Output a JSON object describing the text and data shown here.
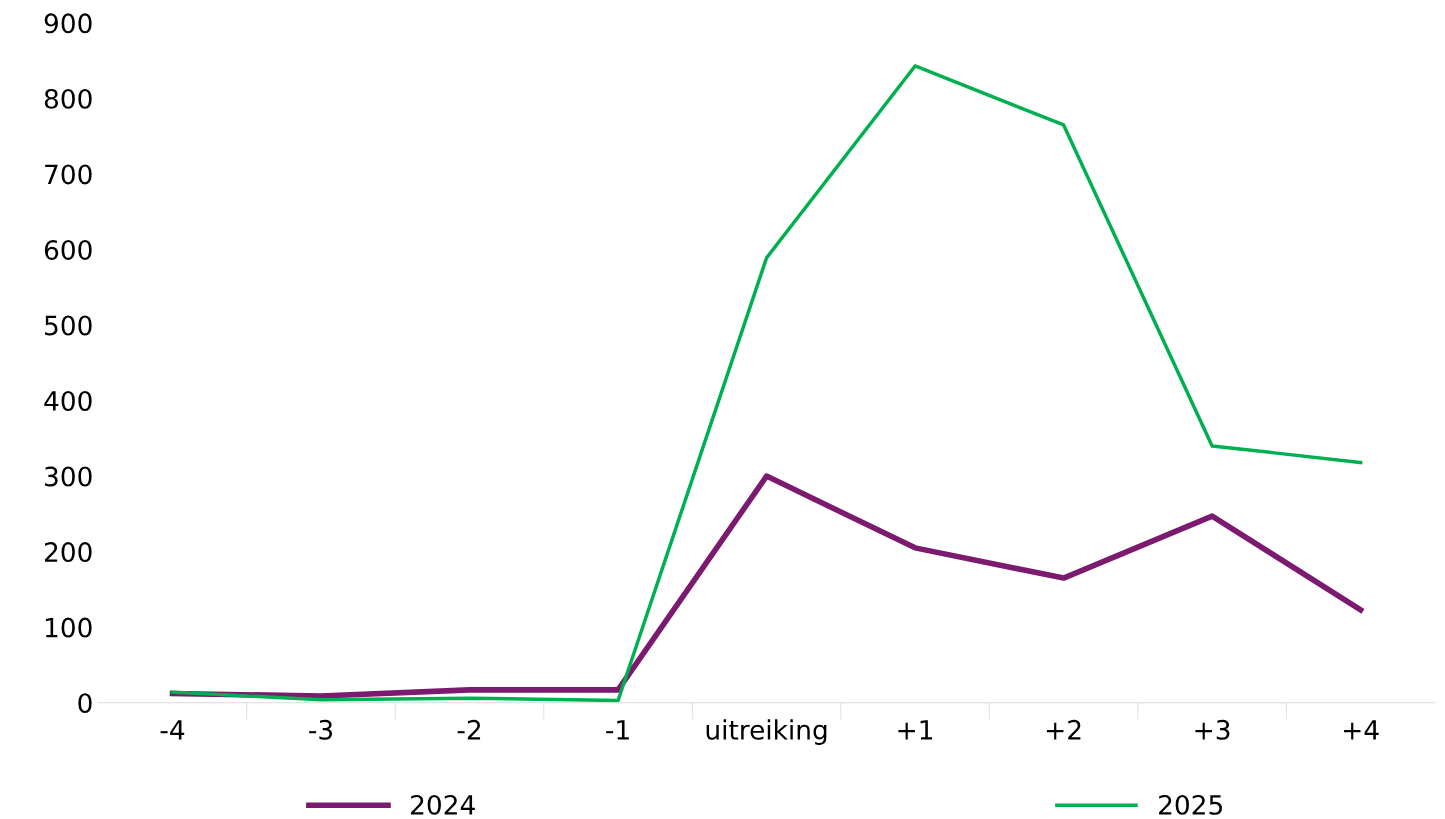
{
  "chart_data": {
    "type": "line",
    "categories": [
      "-4",
      "-3",
      "-2",
      "-1",
      "uitreiking",
      "+1",
      "+2",
      "+3",
      "+4"
    ],
    "series": [
      {
        "name": "2024",
        "color": "#7b1a6e",
        "values": [
          12,
          9,
          17,
          17,
          300,
          205,
          165,
          247,
          123
        ]
      },
      {
        "name": "2025",
        "color": "#00b050",
        "values": [
          14,
          4,
          6,
          3,
          589,
          843,
          765,
          340,
          318
        ]
      }
    ],
    "ylim": [
      0,
      900
    ],
    "yticks": [
      0,
      100,
      200,
      300,
      400,
      500,
      600,
      700,
      800,
      900
    ],
    "grid": false,
    "legend": "bottom",
    "marker": "none",
    "line_style": "solid"
  }
}
